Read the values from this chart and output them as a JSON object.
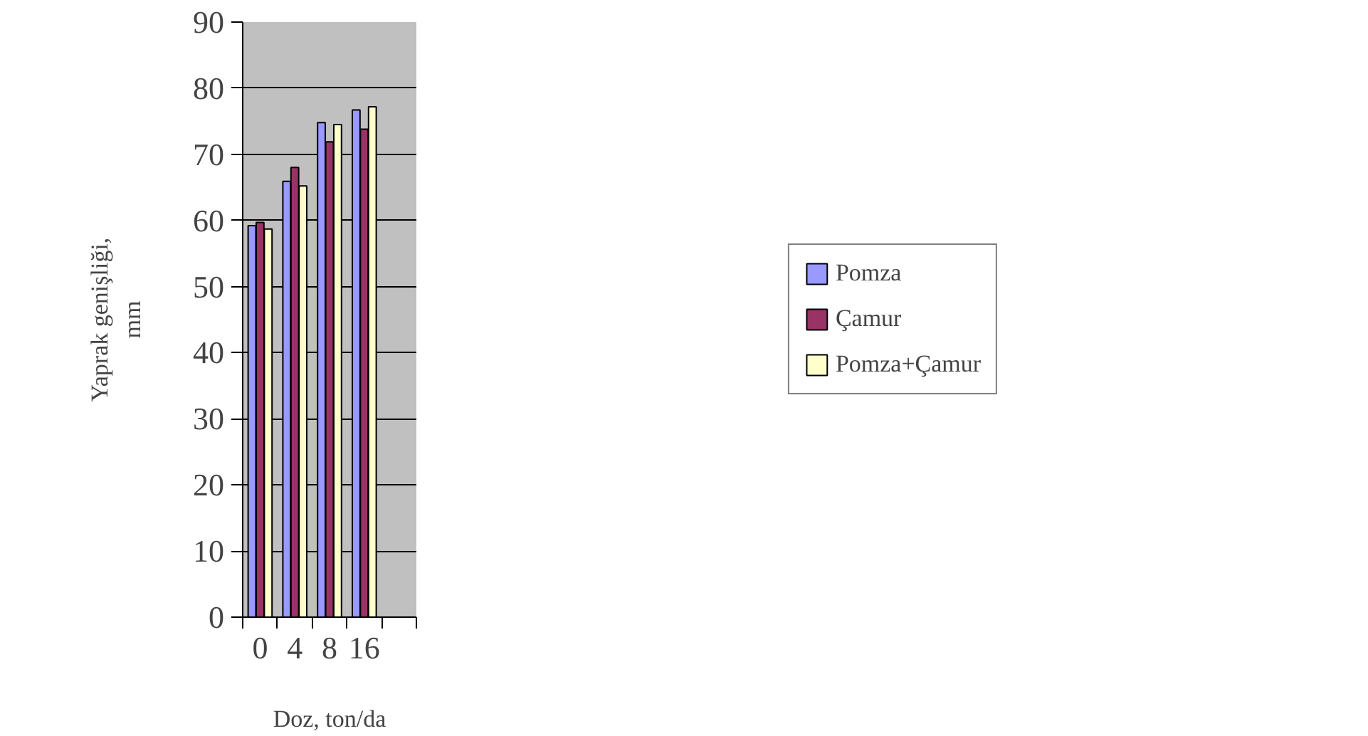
{
  "chart_data": {
    "type": "bar",
    "xlabel": "Doz, ton/da",
    "ylabel": "Yaprak genişliği,\nmm",
    "categories": [
      "0",
      "4",
      "8",
      "16",
      null
    ],
    "series": [
      {
        "name": "Pomza",
        "color": "#9999ff",
        "values": [
          59.2,
          65.9,
          74.8,
          76.7,
          null
        ]
      },
      {
        "name": "Çamur",
        "color": "#993366",
        "values": [
          59.7,
          68,
          71.9,
          73.8,
          null
        ]
      },
      {
        "name": "Pomza+Çamur",
        "color": "#ffffcc",
        "values": [
          58.7,
          65.2,
          74.5,
          77.2,
          null
        ]
      }
    ],
    "ylim": [
      0,
      90
    ],
    "yticks": [
      0,
      10,
      20,
      30,
      40,
      50,
      60,
      70,
      80,
      90
    ],
    "grid": "y",
    "legend": "right"
  }
}
